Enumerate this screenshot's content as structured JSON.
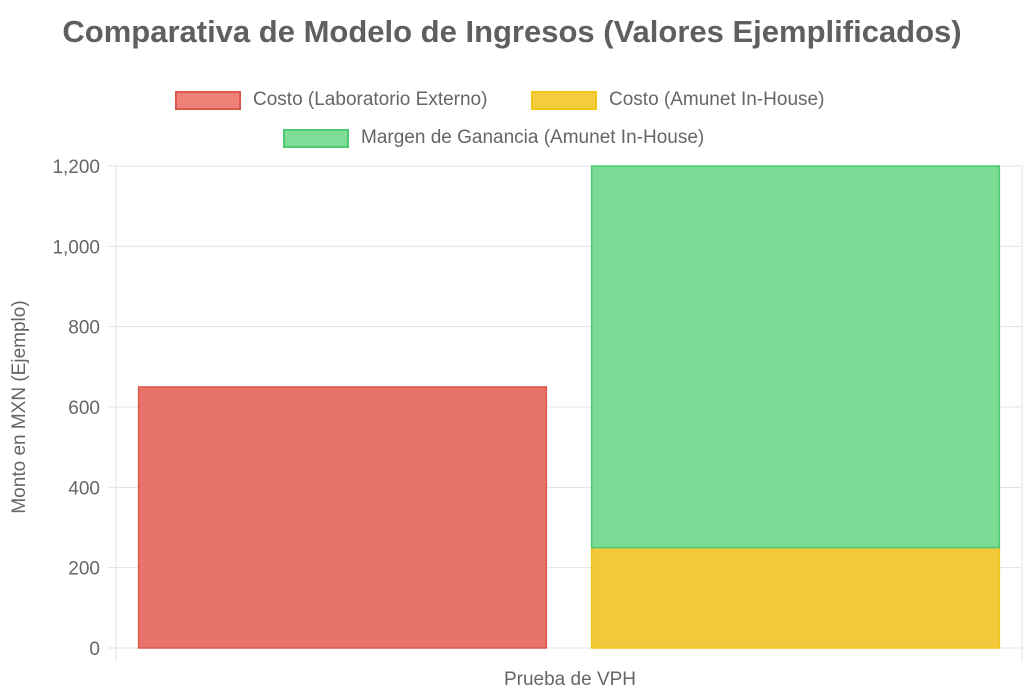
{
  "chart_data": {
    "type": "bar",
    "stacked": true,
    "title": "Comparativa de Modelo de Ingresos (Valores Ejemplificados)",
    "categories": [
      "Prueba de VPH"
    ],
    "xlabel": "",
    "ylabel": "Monto en MXN (Ejemplo)",
    "ylim": [
      0,
      1200
    ],
    "yticks": [
      "0",
      "200",
      "400",
      "600",
      "800",
      "1,000",
      "1,200"
    ],
    "grid": true,
    "legend_position": "top",
    "series": [
      {
        "name": "Costo (Laboratorio Externo)",
        "values": [
          650
        ],
        "stack": "externo",
        "color": "#e8736a",
        "border": "#e0574c"
      },
      {
        "name": "Costo (Amunet In-House)",
        "values": [
          250
        ],
        "stack": "inhouse",
        "color": "#f1c93a",
        "border": "#f0c419"
      },
      {
        "name": "Margen de Ganancia (Amunet In-House)",
        "values": [
          950
        ],
        "stack": "inhouse",
        "color": "#7bdb94",
        "border": "#4ccc72"
      }
    ]
  }
}
